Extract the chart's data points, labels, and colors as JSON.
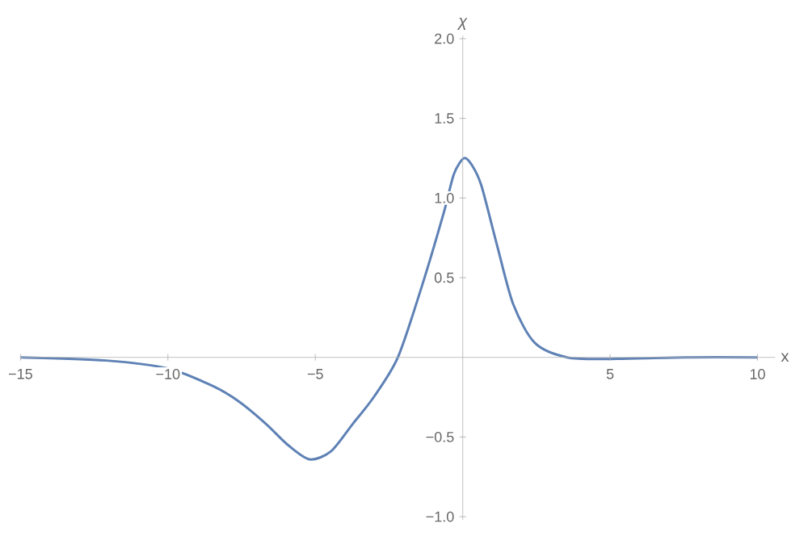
{
  "chart_data": {
    "type": "line",
    "xlabel": "x",
    "ylabel": "χ",
    "xlim": [
      -15,
      10.6
    ],
    "ylim": [
      -1.02,
      2.02
    ],
    "xticks": [
      {
        "value": -15,
        "label": "−15"
      },
      {
        "value": -10,
        "label": "−10"
      },
      {
        "value": -5,
        "label": "−5"
      },
      5,
      10
    ],
    "yticks": [
      {
        "value": -1,
        "label": "−1.0"
      },
      {
        "value": -0.5,
        "label": "−0.5"
      },
      {
        "value": 0.5,
        "label": "0.5"
      },
      {
        "value": 1,
        "label": "1.0"
      },
      {
        "value": 1.5,
        "label": "1.5"
      },
      {
        "value": 2,
        "label": "2.0"
      }
    ],
    "grid": false,
    "marker": "none",
    "line_style": "solid",
    "series": [
      {
        "color": "#5e81b5",
        "x": [
          -15,
          -12.1,
          -10,
          -8.48,
          -7.57,
          -6.66,
          -5.93,
          -5.2,
          -4.47,
          -3.74,
          -3.02,
          -2.2,
          -1.38,
          -0.64,
          -0.3,
          0.04,
          0.3,
          0.63,
          1.17,
          1.72,
          2.45,
          3.54,
          5,
          7.5,
          10
        ],
        "values": [
          0,
          -0.02,
          -0.07,
          -0.18,
          -0.28,
          -0.42,
          -0.55,
          -0.64,
          -0.59,
          -0.42,
          -0.25,
          0.0,
          0.45,
          0.91,
          1.15,
          1.25,
          1.21,
          1.08,
          0.7,
          0.33,
          0.09,
          0.0,
          -0.01,
          0.0,
          0.0
        ]
      }
    ]
  }
}
